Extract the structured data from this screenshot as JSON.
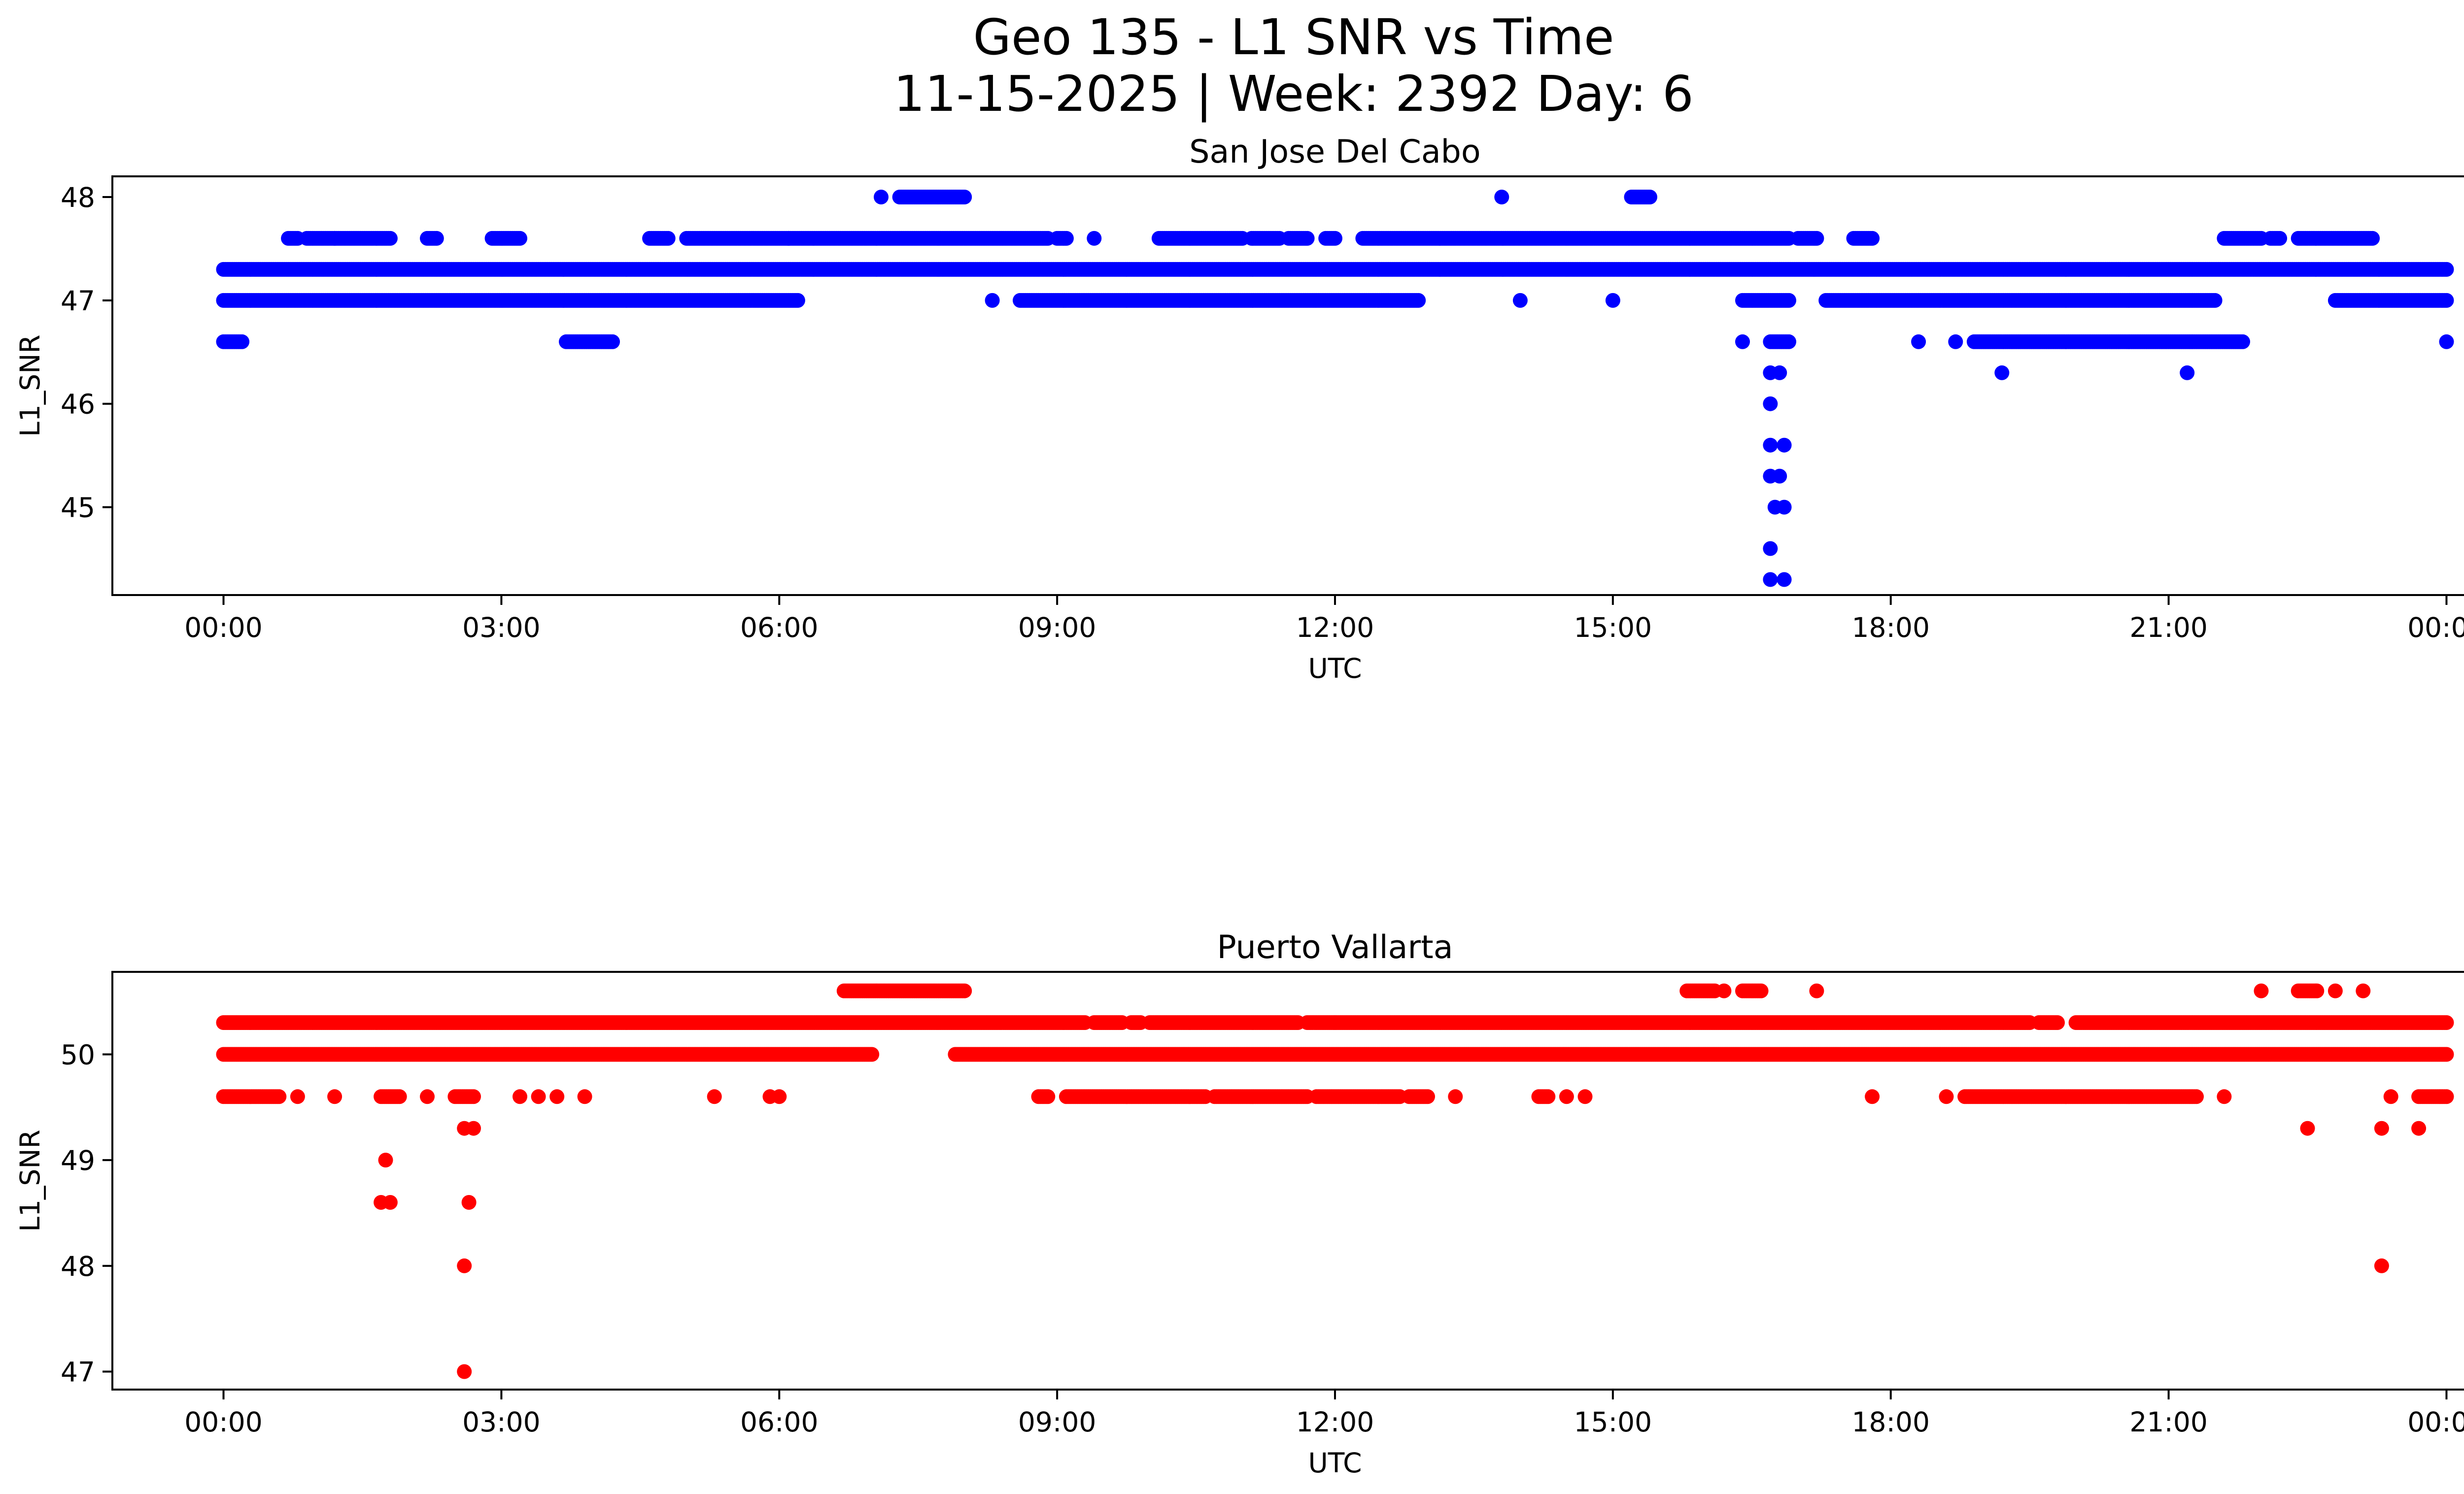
{
  "figure": {
    "title_line1": "Geo 135 - L1 SNR vs Time",
    "title_line2": "11-15-2025 | Week: 2392 Day: 6"
  },
  "chart_data": [
    {
      "type": "scatter",
      "title": "San Jose Del Cabo",
      "xlabel": "UTC",
      "ylabel": "L1_SNR",
      "color": "#0000ff",
      "x_unit": "hours since 00:00 UTC",
      "xlim": [
        -1.2,
        25.2
      ],
      "ylim": [
        44.15,
        48.2
      ],
      "xticks": [
        0,
        3,
        6,
        9,
        12,
        15,
        18,
        21,
        24
      ],
      "xtick_labels": [
        "00:00",
        "03:00",
        "06:00",
        "09:00",
        "12:00",
        "15:00",
        "18:00",
        "21:00",
        "00:00"
      ],
      "yticks": [
        45,
        46,
        47,
        48
      ],
      "ytick_labels": [
        "45",
        "46",
        "47",
        "48"
      ],
      "bands": [
        {
          "y": 47.3,
          "segments": [
            [
              0,
              24
            ]
          ]
        },
        {
          "y": 47.0,
          "segments": [
            [
              0,
              6.2
            ],
            [
              8.3,
              8.3
            ],
            [
              8.6,
              12.9
            ],
            [
              14.0,
              14.0
            ],
            [
              15.0,
              15.0
            ],
            [
              16.4,
              16.9
            ],
            [
              17.3,
              21.5
            ],
            [
              22.8,
              24
            ]
          ]
        },
        {
          "y": 47.6,
          "segments": [
            [
              0.7,
              0.8
            ],
            [
              0.9,
              1.2
            ],
            [
              1.2,
              1.8
            ],
            [
              2.2,
              2.3
            ],
            [
              2.9,
              3.2
            ],
            [
              4.6,
              4.8
            ],
            [
              5.0,
              6.1
            ],
            [
              6.1,
              8.9
            ],
            [
              9.0,
              9.1
            ],
            [
              9.4,
              9.4
            ],
            [
              10.1,
              11.0
            ],
            [
              11.1,
              11.4
            ],
            [
              11.5,
              11.7
            ],
            [
              11.9,
              12.0
            ],
            [
              12.3,
              16.9
            ],
            [
              17.0,
              17.2
            ],
            [
              17.6,
              17.8
            ],
            [
              21.6,
              22.0
            ],
            [
              22.1,
              22.2
            ],
            [
              22.4,
              23.2
            ]
          ]
        },
        {
          "y": 46.6,
          "segments": [
            [
              0,
              0.2
            ],
            [
              3.7,
              4.2
            ],
            [
              16.4,
              16.4
            ],
            [
              16.7,
              16.9
            ],
            [
              18.3,
              18.3
            ],
            [
              18.7,
              18.7
            ],
            [
              18.9,
              21.8
            ],
            [
              24,
              24
            ]
          ]
        },
        {
          "y": 48.0,
          "segments": [
            [
              7.1,
              7.1
            ],
            [
              7.3,
              8.0
            ],
            [
              13.8,
              13.8
            ],
            [
              15.2,
              15.4
            ]
          ]
        }
      ],
      "points": [
        {
          "x": 19.2,
          "y": 46.3
        },
        {
          "x": 21.2,
          "y": 46.3
        },
        {
          "x": 16.7,
          "y": 46.3
        },
        {
          "x": 16.8,
          "y": 46.3
        },
        {
          "x": 16.7,
          "y": 46.0
        },
        {
          "x": 16.7,
          "y": 45.6
        },
        {
          "x": 16.85,
          "y": 45.6
        },
        {
          "x": 16.7,
          "y": 45.3
        },
        {
          "x": 16.8,
          "y": 45.3
        },
        {
          "x": 16.75,
          "y": 45.0
        },
        {
          "x": 16.85,
          "y": 45.0
        },
        {
          "x": 16.7,
          "y": 44.6
        },
        {
          "x": 16.7,
          "y": 44.3
        },
        {
          "x": 16.85,
          "y": 44.3
        }
      ]
    },
    {
      "type": "scatter",
      "title": "Puerto Vallarta",
      "xlabel": "UTC",
      "ylabel": "L1_SNR",
      "color": "#ff0000",
      "x_unit": "hours since 00:00 UTC",
      "xlim": [
        -1.2,
        25.2
      ],
      "ylim": [
        46.83,
        50.78
      ],
      "xticks": [
        0,
        3,
        6,
        9,
        12,
        15,
        18,
        21,
        24
      ],
      "xtick_labels": [
        "00:00",
        "03:00",
        "06:00",
        "09:00",
        "12:00",
        "15:00",
        "18:00",
        "21:00",
        "00:00"
      ],
      "yticks": [
        47,
        48,
        49,
        50
      ],
      "ytick_labels": [
        "47",
        "48",
        "49",
        "50"
      ],
      "bands": [
        {
          "y": 50.3,
          "segments": [
            [
              0,
              9.3
            ],
            [
              9.4,
              9.7
            ],
            [
              9.8,
              9.9
            ],
            [
              10.0,
              11.6
            ],
            [
              11.7,
              12.0
            ],
            [
              12.0,
              19.5
            ],
            [
              19.6,
              19.8
            ],
            [
              20.0,
              24
            ]
          ]
        },
        {
          "y": 50.0,
          "segments": [
            [
              0,
              7.0
            ],
            [
              7.9,
              24
            ]
          ]
        },
        {
          "y": 50.6,
          "segments": [
            [
              6.7,
              8.0
            ],
            [
              15.8,
              16.1
            ],
            [
              16.2,
              16.2
            ],
            [
              16.4,
              16.6
            ],
            [
              17.2,
              17.2
            ],
            [
              22.0,
              22.0
            ],
            [
              22.4,
              22.6
            ],
            [
              22.8,
              22.8
            ],
            [
              23.1,
              23.1
            ]
          ]
        },
        {
          "y": 49.6,
          "segments": [
            [
              0,
              0.6
            ],
            [
              0.8,
              0.8
            ],
            [
              1.2,
              1.2
            ],
            [
              1.7,
              1.9
            ],
            [
              2.2,
              2.2
            ],
            [
              2.5,
              2.7
            ],
            [
              3.2,
              3.2
            ],
            [
              3.4,
              3.4
            ],
            [
              3.6,
              3.6
            ],
            [
              3.9,
              3.9
            ],
            [
              5.3,
              5.3
            ],
            [
              5.9,
              5.9
            ],
            [
              6.0,
              6.0
            ],
            [
              8.8,
              8.9
            ],
            [
              9.1,
              10.6
            ],
            [
              10.7,
              11.7
            ],
            [
              11.8,
              12.7
            ],
            [
              12.8,
              13.0
            ],
            [
              13.3,
              13.3
            ],
            [
              14.2,
              14.3
            ],
            [
              14.5,
              14.5
            ],
            [
              14.7,
              14.7
            ],
            [
              17.8,
              17.8
            ],
            [
              18.6,
              18.6
            ],
            [
              18.8,
              21.3
            ],
            [
              21.6,
              21.6
            ],
            [
              23.4,
              23.4
            ],
            [
              23.7,
              24
            ]
          ]
        }
      ],
      "points": [
        {
          "x": 2.6,
          "y": 49.3
        },
        {
          "x": 2.7,
          "y": 49.3
        },
        {
          "x": 22.5,
          "y": 49.3
        },
        {
          "x": 23.3,
          "y": 49.3
        },
        {
          "x": 23.7,
          "y": 49.3
        },
        {
          "x": 1.75,
          "y": 49.0
        },
        {
          "x": 1.7,
          "y": 48.6
        },
        {
          "x": 1.8,
          "y": 48.6
        },
        {
          "x": 2.65,
          "y": 48.6
        },
        {
          "x": 2.6,
          "y": 48.0
        },
        {
          "x": 23.3,
          "y": 48.0
        },
        {
          "x": 2.6,
          "y": 47.0
        }
      ]
    }
  ]
}
